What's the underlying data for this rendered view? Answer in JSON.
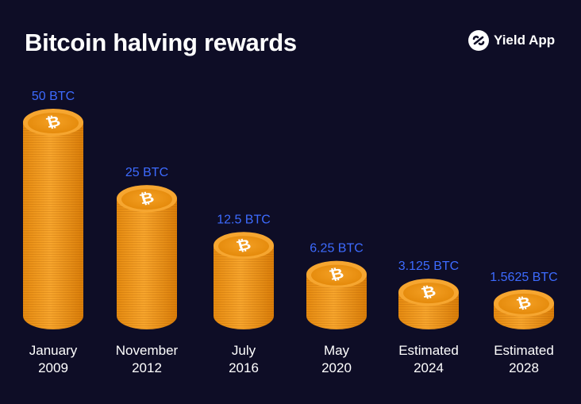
{
  "title": "Bitcoin halving rewards",
  "brand": {
    "name": "Yield App",
    "icon": "yield-app-logo-icon"
  },
  "colors": {
    "background": "#0e0d26",
    "coin": "#f29a1f",
    "value_label": "#3d6bff",
    "text": "#ffffff"
  },
  "chart_data": {
    "type": "bar",
    "title": "Bitcoin halving rewards",
    "categories": [
      [
        "January",
        "2009"
      ],
      [
        "November",
        "2012"
      ],
      [
        "July",
        "2016"
      ],
      [
        "May",
        "2020"
      ],
      [
        "Estimated",
        "2024"
      ],
      [
        "Estimated",
        "2028"
      ]
    ],
    "values": [
      50,
      25,
      12.5,
      6.25,
      3.125,
      1.5625
    ],
    "value_labels": [
      "50 BTC",
      "25 BTC",
      "12.5 BTC",
      "6.25 BTC",
      "3.125 BTC",
      "1.5625 BTC"
    ],
    "unit": "BTC",
    "mark": "stacked bitcoin coins",
    "grid": false
  }
}
